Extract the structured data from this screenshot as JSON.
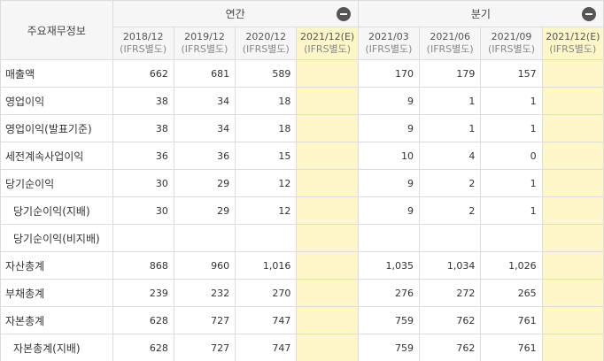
{
  "table": {
    "corner": "주요재무정보",
    "groups": [
      {
        "label": "연간"
      },
      {
        "label": "분기"
      }
    ],
    "periods": [
      {
        "period": "2018/12",
        "standard": "(IFRS별도)"
      },
      {
        "period": "2019/12",
        "standard": "(IFRS별도)"
      },
      {
        "period": "2020/12",
        "standard": "(IFRS별도)"
      },
      {
        "period": "2021/12(E)",
        "standard": "(IFRS별도)"
      },
      {
        "period": "2021/03",
        "standard": "(IFRS별도)"
      },
      {
        "period": "2021/06",
        "standard": "(IFRS별도)"
      },
      {
        "period": "2021/09",
        "standard": "(IFRS별도)"
      },
      {
        "period": "2021/12(E)",
        "standard": "(IFRS별도)"
      }
    ],
    "rows": [
      {
        "label": "매출액",
        "values": [
          "662",
          "681",
          "589",
          null,
          "170",
          "179",
          "157",
          null
        ]
      },
      {
        "label": "영업이익",
        "values": [
          "38",
          "34",
          "18",
          null,
          "9",
          "1",
          "1",
          null
        ]
      },
      {
        "label": "영업이익(발표기준)",
        "values": [
          "38",
          "34",
          "18",
          null,
          "9",
          "1",
          "1",
          null
        ]
      },
      {
        "label": "세전계속사업이익",
        "values": [
          "36",
          "36",
          "15",
          null,
          "10",
          "4",
          "0",
          null
        ]
      },
      {
        "label": "당기순이익",
        "values": [
          "30",
          "29",
          "12",
          null,
          "9",
          "2",
          "1",
          null
        ]
      },
      {
        "label": "당기순이익(지배)",
        "values": [
          "30",
          "29",
          "12",
          null,
          "9",
          "2",
          "1",
          null
        ]
      },
      {
        "label": "당기순이익(비지배)",
        "values": [
          null,
          null,
          null,
          null,
          null,
          null,
          null,
          null
        ]
      },
      {
        "label": "자산총계",
        "values": [
          "868",
          "960",
          "1,016",
          null,
          "1,035",
          "1,034",
          "1,026",
          null
        ]
      },
      {
        "label": "부채총계",
        "values": [
          "239",
          "232",
          "270",
          null,
          "276",
          "272",
          "265",
          null
        ]
      },
      {
        "label": "자본총계",
        "values": [
          "628",
          "727",
          "747",
          null,
          "759",
          "762",
          "761",
          null
        ]
      },
      {
        "label": "자본총계(지배)",
        "values": [
          "628",
          "727",
          "747",
          null,
          "759",
          "762",
          "761",
          null
        ]
      }
    ]
  }
}
